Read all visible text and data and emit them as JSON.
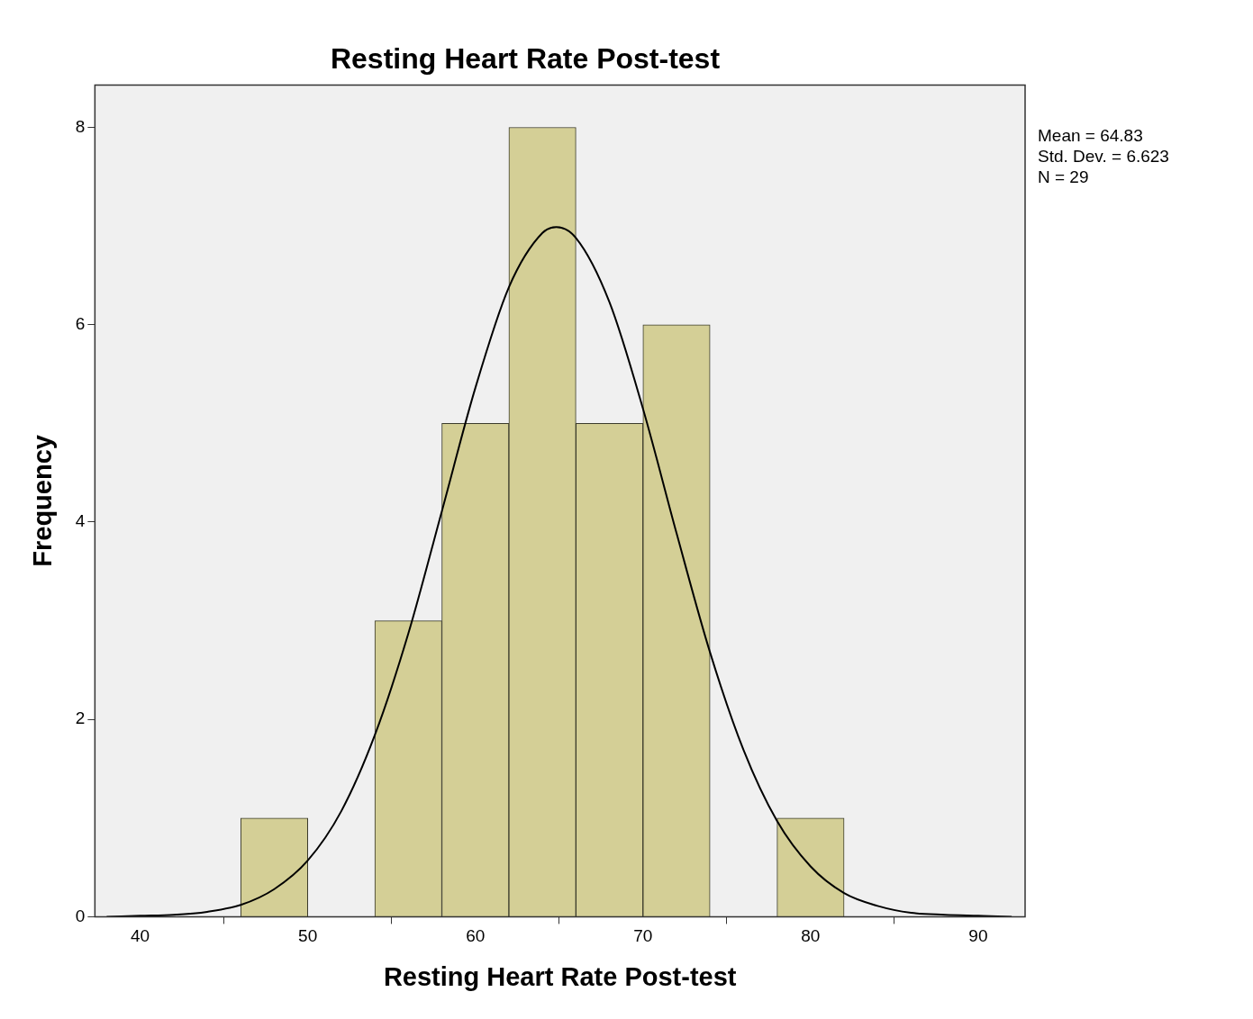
{
  "chart_data": {
    "type": "histogram",
    "title": "Resting Heart Rate Post-test",
    "xlabel": "Resting Heart Rate Post-test",
    "ylabel": "Frequency",
    "bins": [
      46,
      50,
      54,
      58,
      62,
      66,
      70,
      74,
      78,
      82
    ],
    "values": [
      1,
      0,
      3,
      5,
      8,
      5,
      6,
      0,
      1
    ],
    "color": "#d4cf96",
    "series": [
      {
        "type": "line",
        "color": "#000000",
        "x": [
          38,
          40,
          42,
          44,
          46,
          48,
          50,
          52,
          54,
          56,
          58,
          60,
          62,
          64,
          64.83,
          66,
          68,
          70,
          72,
          74,
          76,
          78,
          80,
          82,
          84,
          86,
          88,
          90,
          92
        ],
        "values": [
          0,
          0.01,
          0.02,
          0.05,
          0.12,
          0.28,
          0.57,
          1.07,
          1.84,
          2.87,
          4.11,
          5.36,
          6.38,
          6.93,
          6.99,
          6.88,
          6.23,
          5.15,
          3.89,
          2.68,
          1.69,
          0.97,
          0.51,
          0.24,
          0.11,
          0.04,
          0.02,
          0.01,
          0
        ]
      }
    ],
    "xlim": [
      37.3,
      92.8
    ],
    "xticks": [
      40,
      50,
      60,
      70,
      80,
      90
    ],
    "ylim": [
      0,
      8.43
    ],
    "yticks": [
      0,
      2,
      4,
      6,
      8
    ],
    "legend": false,
    "marker": "none",
    "annotations": [
      "Mean = 64.83",
      "Std. Dev. = 6.623",
      "N = 29"
    ]
  }
}
